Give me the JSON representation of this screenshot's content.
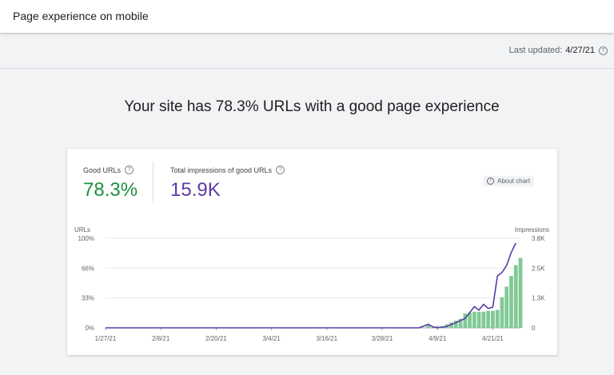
{
  "header": {
    "title": "Page experience on mobile"
  },
  "status": {
    "last_updated_label": "Last updated:",
    "last_updated_value": "4/27/21"
  },
  "summary": {
    "headline": "Your site has 78.3% URLs with a good page experience"
  },
  "metrics": {
    "good_urls": {
      "label": "Good URLs",
      "value": "78.3%",
      "color": "#1e8e3e"
    },
    "impressions": {
      "label": "Total impressions of good URLs",
      "value": "15.9K",
      "color": "#5c3aa8"
    }
  },
  "about_chart_label": "About chart",
  "icons": {
    "help": "help-circle-icon",
    "info": "info-icon"
  },
  "chart_data": {
    "type": "bar",
    "left_axis": {
      "label": "URLs",
      "ticks": [
        "0%",
        "33%",
        "66%",
        "100%"
      ],
      "ylim": [
        0,
        100
      ]
    },
    "right_axis": {
      "label": "Impressions",
      "ticks": [
        "0",
        "1.3K",
        "2.5K",
        "3.8K"
      ],
      "ylim": [
        0,
        3800
      ]
    },
    "x_ticks": [
      {
        "label": "1/27/21",
        "day": 0
      },
      {
        "label": "2/8/21",
        "day": 12
      },
      {
        "label": "2/20/21",
        "day": 24
      },
      {
        "label": "3/4/21",
        "day": 36
      },
      {
        "label": "3/16/21",
        "day": 48
      },
      {
        "label": "3/28/21",
        "day": 60
      },
      {
        "label": "4/9/21",
        "day": 72
      },
      {
        "label": "4/21/21",
        "day": 84
      }
    ],
    "day_range": [
      0,
      90
    ],
    "series": [
      {
        "name": "Good URLs",
        "kind": "bar",
        "axis": "left",
        "color": "#81c995",
        "values": [
          {
            "day": 70,
            "value": 3
          },
          {
            "day": 72,
            "value": 2
          },
          {
            "day": 73,
            "value": 2
          },
          {
            "day": 74,
            "value": 4
          },
          {
            "day": 75,
            "value": 6
          },
          {
            "day": 76,
            "value": 8
          },
          {
            "day": 77,
            "value": 10
          },
          {
            "day": 78,
            "value": 16
          },
          {
            "day": 79,
            "value": 17
          },
          {
            "day": 80,
            "value": 18
          },
          {
            "day": 81,
            "value": 18
          },
          {
            "day": 82,
            "value": 18
          },
          {
            "day": 83,
            "value": 19
          },
          {
            "day": 84,
            "value": 19
          },
          {
            "day": 85,
            "value": 20
          },
          {
            "day": 86,
            "value": 34
          },
          {
            "day": 87,
            "value": 46
          },
          {
            "day": 88,
            "value": 58
          },
          {
            "day": 89,
            "value": 70
          },
          {
            "day": 90,
            "value": 78
          }
        ]
      },
      {
        "name": "Total impressions of good URLs",
        "kind": "line",
        "axis": "right",
        "color": "#5c3aa8",
        "values": [
          {
            "day": 0,
            "value": 0
          },
          {
            "day": 68,
            "value": 0
          },
          {
            "day": 70,
            "value": 150
          },
          {
            "day": 71,
            "value": 40
          },
          {
            "day": 72,
            "value": 0
          },
          {
            "day": 74,
            "value": 60
          },
          {
            "day": 76,
            "value": 220
          },
          {
            "day": 78,
            "value": 400
          },
          {
            "day": 80,
            "value": 900
          },
          {
            "day": 81,
            "value": 750
          },
          {
            "day": 82,
            "value": 1000
          },
          {
            "day": 83,
            "value": 820
          },
          {
            "day": 84,
            "value": 880
          },
          {
            "day": 85,
            "value": 2200
          },
          {
            "day": 86,
            "value": 2350
          },
          {
            "day": 87,
            "value": 2650
          },
          {
            "day": 88,
            "value": 3200
          },
          {
            "day": 89,
            "value": 3600
          }
        ]
      }
    ],
    "grid": true
  }
}
